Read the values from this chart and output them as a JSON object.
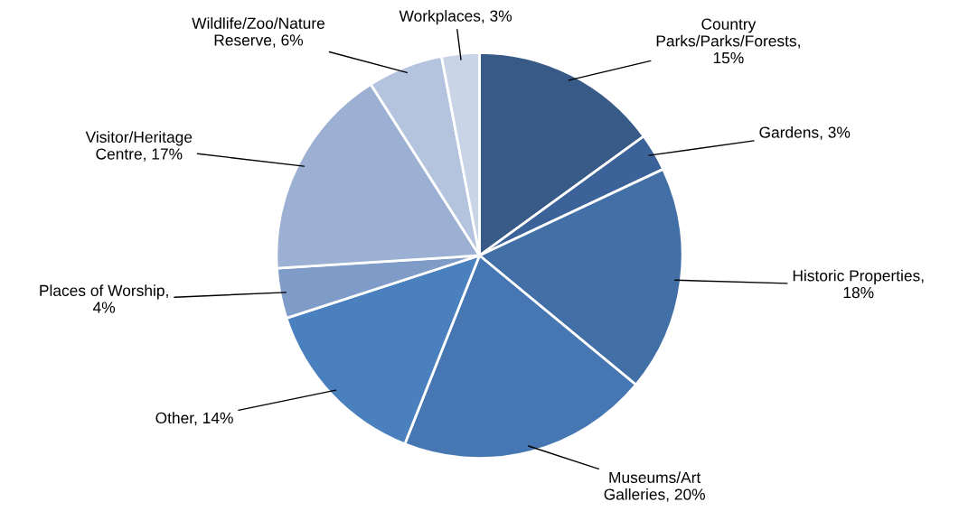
{
  "chart_data": {
    "type": "pie",
    "categories": [
      "Country Parks/Parks/Forests, 15%",
      "Gardens, 3%",
      "Historic Properties, 18%",
      "Museums/Art Galleries, 20%",
      "Other, 14%",
      "Places of Worship, 4%",
      "Visitor/Heritage Centre, 17%",
      "Wildlife/Zoo/Nature Reserve, 6%",
      "Workplaces, 3%"
    ],
    "values": [
      15,
      3,
      18,
      20,
      14,
      4,
      17,
      6,
      3
    ],
    "colors": [
      "#375a87",
      "#3b6299",
      "#426fa6",
      "#4777b3",
      "#4b80bf",
      "#7f9cc9",
      "#9cb0d3",
      "#b4c3de",
      "#cad4e7"
    ],
    "legend": false
  }
}
